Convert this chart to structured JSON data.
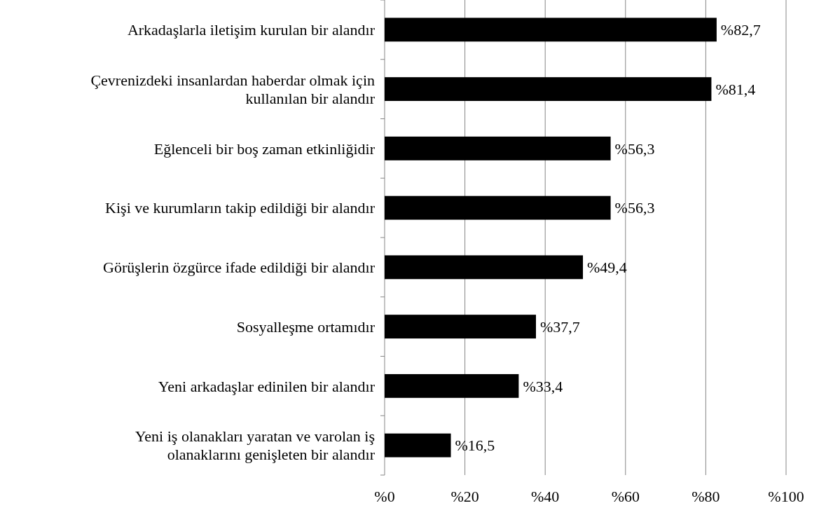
{
  "chart_data": {
    "type": "bar",
    "orientation": "horizontal",
    "categories": [
      "Arkadaşlarla iletişim kurulan bir alandır",
      "Çevrenizdeki insanlardan haberdar olmak için kullanılan bir alandır",
      "Eğlenceli bir boş zaman etkinliğidir",
      "Kişi ve kurumların takip edildiği bir alandır",
      "Görüşlerin özgürce ifade edildiği bir alandır",
      "Sosyalleşme ortamıdır",
      "Yeni arkadaşlar edinilen bir alandır",
      "Yeni iş olanakları yaratan ve varolan iş olanaklarını genişleten bir alandır"
    ],
    "values": [
      82.7,
      81.4,
      56.3,
      56.3,
      49.4,
      37.7,
      33.4,
      16.5
    ],
    "value_labels": [
      "%82,7",
      "%81,4",
      "%56,3",
      "%56,3",
      "%49,4",
      "%37,7",
      "%33,4",
      "%16,5"
    ],
    "color": "#000000",
    "xlim": [
      0,
      100
    ],
    "xticks": [
      {
        "value": 0,
        "label": "%0"
      },
      {
        "value": 20,
        "label": "%20"
      },
      {
        "value": 40,
        "label": "%40"
      },
      {
        "value": 60,
        "label": "%60"
      },
      {
        "value": 80,
        "label": "%80"
      },
      {
        "value": 100,
        "label": "%100"
      }
    ],
    "grid": "x"
  }
}
